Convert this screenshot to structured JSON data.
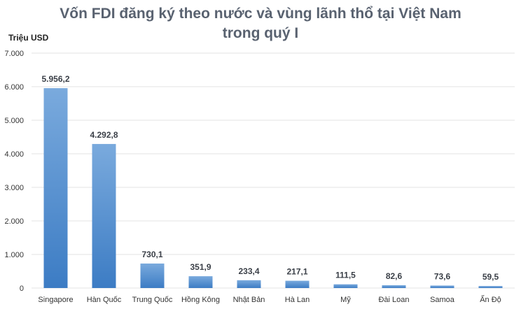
{
  "chart_data": {
    "type": "bar",
    "title_line1": "Vốn FDI đăng ký theo nước và vùng lãnh thổ tại Việt Nam",
    "title_line2": "trong quý I",
    "ylabel": "Triệu USD",
    "xlabel": "",
    "ylim": [
      0,
      7000
    ],
    "yticks": [
      0,
      1000,
      2000,
      3000,
      4000,
      5000,
      6000,
      7000
    ],
    "ytick_labels": [
      "0",
      "1.000",
      "2.000",
      "3.000",
      "4.000",
      "5.000",
      "6.000",
      "7.000"
    ],
    "grid": true,
    "categories": [
      "Singapore",
      "Hàn Quốc",
      "Trung Quốc",
      "Hồng Kông",
      "Nhật Bản",
      "Hà Lan",
      "Mỹ",
      "Đài Loan",
      "Samoa",
      "Ấn Độ"
    ],
    "values": [
      5956.2,
      4292.8,
      730.1,
      351.9,
      233.4,
      217.1,
      111.5,
      82.6,
      73.6,
      59.5
    ],
    "data_labels": [
      "5.956,2",
      "4.292,8",
      "730,1",
      "351,9",
      "233,4",
      "217,1",
      "111,5",
      "82,6",
      "73,6",
      "59,5"
    ],
    "colors": {
      "bar_top": "#7aaadd",
      "bar_bottom": "#3c7cc4",
      "grid": "#e3e3e3",
      "title": "#596270"
    }
  }
}
